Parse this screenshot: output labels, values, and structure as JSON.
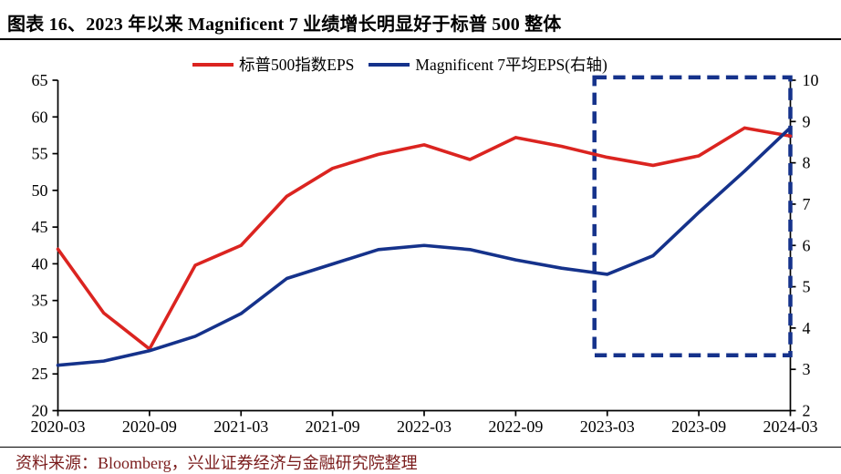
{
  "page": {
    "title": "图表 16、2023 年以来 Magnificent 7 业绩增长明显好于标普 500 整体",
    "source": "资料来源：Bloomberg，兴业证券经济与金融研究院整理"
  },
  "colors": {
    "sp500_line": "#DB2420",
    "mag7_line": "#15328B",
    "axis": "#000000",
    "title_text": "#000000",
    "source_text": "#7A1B1B",
    "highlight_box": "#15328B"
  },
  "legend": {
    "items": [
      {
        "label": "标普500指数EPS",
        "color": "#DB2420"
      },
      {
        "label": "Magnificent 7平均EPS(右轴)",
        "color": "#15328B"
      }
    ]
  },
  "chart_data": {
    "type": "line",
    "title": "图表 16、2023 年以来 Magnificent 7 业绩增长明显好于标普 500 整体",
    "categories": [
      "2020-03",
      "2020-06",
      "2020-09",
      "2020-12",
      "2021-03",
      "2021-06",
      "2021-09",
      "2021-12",
      "2022-03",
      "2022-06",
      "2022-09",
      "2022-12",
      "2023-03",
      "2023-06",
      "2023-09",
      "2023-12",
      "2024-03"
    ],
    "x_tick_every": 2,
    "x_tick_labels": [
      "2020-03",
      "2020-09",
      "2021-03",
      "2021-09",
      "2022-03",
      "2022-09",
      "2023-03",
      "2023-09",
      "2024-03"
    ],
    "series": [
      {
        "name": "标普500指数EPS",
        "axis": "left",
        "color": "#DB2420",
        "values": [
          42.0,
          33.3,
          28.4,
          39.8,
          42.5,
          49.2,
          53.0,
          54.9,
          56.2,
          54.2,
          57.2,
          56.0,
          54.5,
          53.4,
          54.7,
          58.5,
          57.4
        ]
      },
      {
        "name": "Magnificent 7平均EPS(右轴)",
        "axis": "right",
        "color": "#15328B",
        "values": [
          3.1,
          3.2,
          3.45,
          3.8,
          4.35,
          5.2,
          5.55,
          5.9,
          6.0,
          5.9,
          5.65,
          5.45,
          5.3,
          5.75,
          6.8,
          7.8,
          8.85
        ]
      }
    ],
    "left_axis": {
      "min": 20,
      "max": 65,
      "step": 5
    },
    "right_axis": {
      "min": 2,
      "max": 10,
      "step": 1
    },
    "grid": false,
    "legend_position": "top",
    "highlight_box": {
      "x_index_from": 11.72,
      "x_index_to": 16,
      "right_value_from": 3.34,
      "right_value_to": 10.07,
      "style": "dashed"
    }
  }
}
